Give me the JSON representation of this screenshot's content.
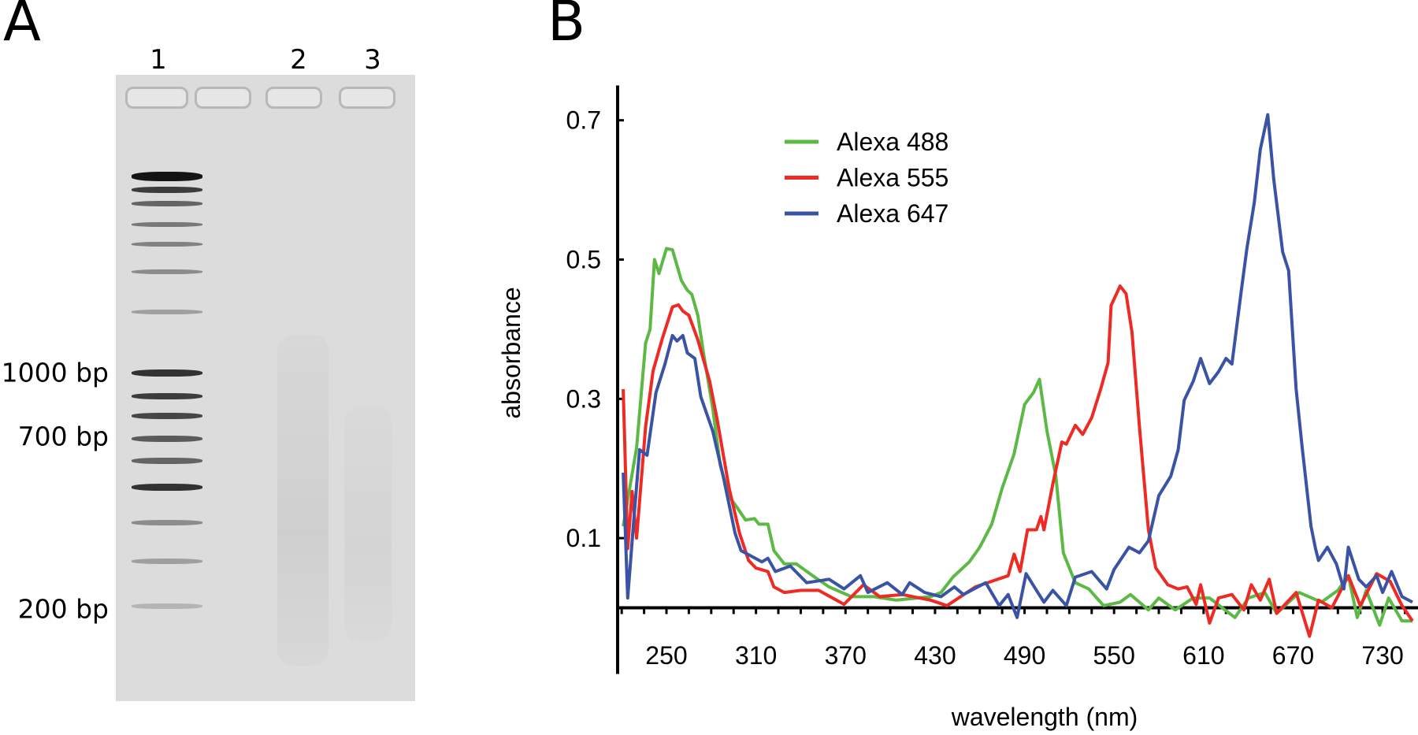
{
  "panel_a": {
    "letter": "A",
    "lane_labels": [
      "1",
      "2",
      "3"
    ],
    "size_markers": [
      "1000 bp",
      "700 bp",
      "200 bp"
    ]
  },
  "panel_b": {
    "letter": "B"
  },
  "chart_data": {
    "type": "line",
    "title": "",
    "xlabel": "wavelength (nm)",
    "ylabel": "absorbance",
    "xlim": [
      218,
      752
    ],
    "ylim": [
      -0.095,
      0.75
    ],
    "xticks": [
      250,
      310,
      370,
      430,
      490,
      550,
      610,
      670,
      730
    ],
    "yticks": [
      0.1,
      0.3,
      0.5,
      0.7
    ],
    "grid": false,
    "legend_position": "top-left",
    "series": [
      {
        "name": "Alexa 488",
        "color": "#5cb946",
        "x": [
          221,
          230,
          236,
          239,
          242,
          245,
          250,
          254,
          260,
          264,
          267,
          271,
          275,
          281,
          286,
          292,
          297,
          303,
          309,
          312,
          318,
          322,
          329,
          337,
          348,
          359,
          374,
          389,
          404,
          427,
          434,
          442,
          453,
          460,
          468,
          475,
          483,
          490,
          496,
          500,
          505,
          511,
          516,
          524,
          533,
          543,
          554,
          561,
          573,
          580,
          591,
          603,
          614,
          631,
          640,
          651,
          659,
          674,
          689,
          700,
          707,
          713,
          719,
          728,
          734,
          743,
          750
        ],
        "y": [
          0.117,
          0.23,
          0.38,
          0.4,
          0.5,
          0.48,
          0.516,
          0.514,
          0.47,
          0.456,
          0.45,
          0.42,
          0.363,
          0.287,
          0.205,
          0.16,
          0.145,
          0.126,
          0.128,
          0.12,
          0.12,
          0.082,
          0.063,
          0.063,
          0.046,
          0.03,
          0.016,
          0.016,
          0.011,
          0.016,
          0.022,
          0.044,
          0.066,
          0.087,
          0.12,
          0.172,
          0.221,
          0.292,
          0.309,
          0.328,
          0.254,
          0.189,
          0.079,
          0.036,
          0.027,
          0.003,
          0.008,
          0.019,
          -0.003,
          0.014,
          -0.003,
          0.014,
          0.014,
          -0.014,
          0.014,
          0.022,
          -0.008,
          0.022,
          0.008,
          0.025,
          0.046,
          -0.014,
          0.025,
          -0.025,
          0.014,
          -0.019,
          -0.019
        ]
      },
      {
        "name": "Alexa 555",
        "color": "#ee2a24",
        "x": [
          221,
          224,
          227,
          230,
          236,
          241,
          247,
          254,
          258,
          261,
          265,
          271,
          279,
          284,
          292,
          299,
          305,
          310,
          318,
          322,
          329,
          340,
          352,
          369,
          382,
          393,
          408,
          427,
          438,
          457,
          468,
          479,
          483,
          487,
          492,
          498,
          501,
          503,
          509,
          515,
          518,
          524,
          529,
          535,
          541,
          546,
          548,
          554,
          558,
          562,
          567,
          573,
          578,
          586,
          593,
          599,
          605,
          608,
          614,
          620,
          629,
          637,
          642,
          648,
          654,
          659,
          672,
          681,
          687,
          696,
          707,
          715,
          726,
          735,
          743,
          750
        ],
        "y": [
          0.314,
          0.085,
          0.167,
          0.1,
          0.26,
          0.34,
          0.385,
          0.432,
          0.435,
          0.426,
          0.42,
          0.385,
          0.325,
          0.27,
          0.172,
          0.107,
          0.068,
          0.057,
          0.052,
          0.03,
          0.022,
          0.025,
          0.025,
          0.005,
          0.033,
          0.016,
          0.019,
          0.011,
          0.003,
          0.03,
          0.038,
          0.046,
          0.077,
          0.052,
          0.112,
          0.112,
          0.131,
          0.112,
          0.178,
          0.238,
          0.235,
          0.262,
          0.249,
          0.273,
          0.314,
          0.352,
          0.434,
          0.462,
          0.451,
          0.396,
          0.26,
          0.112,
          0.057,
          0.033,
          0.027,
          0.03,
          0.005,
          0.033,
          -0.022,
          0.014,
          0.019,
          -0.003,
          0.033,
          0.011,
          0.041,
          -0.008,
          0.022,
          -0.041,
          0.011,
          0,
          0.046,
          0.003,
          0.049,
          0.038,
          0.003,
          -0.019
        ]
      },
      {
        "name": "Alexa 647",
        "color": "#3a53a4",
        "x": [
          221,
          224,
          228,
          232,
          237,
          243,
          249,
          254,
          257,
          261,
          264,
          269,
          273,
          281,
          288,
          296,
          300,
          307,
          314,
          318,
          323,
          333,
          344,
          359,
          369,
          380,
          385,
          398,
          408,
          413,
          423,
          434,
          443,
          449,
          464,
          473,
          479,
          485,
          491,
          498,
          503,
          509,
          518,
          524,
          535,
          545,
          550,
          560,
          567,
          573,
          580,
          588,
          593,
          597,
          603,
          608,
          614,
          620,
          625,
          629,
          635,
          639,
          644,
          648,
          653,
          657,
          663,
          667,
          672,
          676,
          682,
          685,
          687,
          693,
          699,
          704,
          707,
          714,
          719,
          726,
          730,
          736,
          743,
          750
        ],
        "y": [
          0.194,
          0.014,
          0.123,
          0.227,
          0.219,
          0.309,
          0.35,
          0.391,
          0.383,
          0.391,
          0.366,
          0.358,
          0.303,
          0.254,
          0.189,
          0.107,
          0.082,
          0.074,
          0.066,
          0.071,
          0.052,
          0.06,
          0.036,
          0.041,
          0.027,
          0.046,
          0.022,
          0.036,
          0.019,
          0.036,
          0.022,
          0.016,
          0.03,
          0.019,
          0.036,
          0.003,
          0.019,
          -0.014,
          0.049,
          0.025,
          0.008,
          0.025,
          0.003,
          0.044,
          0.052,
          0.027,
          0.055,
          0.087,
          0.079,
          0.096,
          0.161,
          0.189,
          0.227,
          0.298,
          0.325,
          0.358,
          0.322,
          0.339,
          0.358,
          0.35,
          0.451,
          0.516,
          0.582,
          0.658,
          0.708,
          0.615,
          0.511,
          0.484,
          0.314,
          0.232,
          0.117,
          0.085,
          0.068,
          0.087,
          0.063,
          0.027,
          0.087,
          0.041,
          0.03,
          0.046,
          0.022,
          0.052,
          0.016,
          0.008
        ]
      }
    ]
  }
}
